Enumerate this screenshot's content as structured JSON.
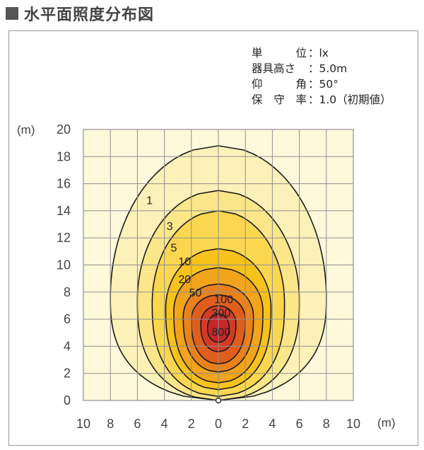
{
  "title": "水平面照度分布図",
  "specs": [
    {
      "label": [
        "単",
        "位"
      ],
      "value": "：lx"
    },
    {
      "label": [
        "器具高さ"
      ],
      "value": "：5.0m"
    },
    {
      "label": [
        "仰",
        "角"
      ],
      "value": "：50°"
    },
    {
      "label": [
        "保",
        "守",
        "率"
      ],
      "value": "：1.0（初期値）"
    }
  ],
  "chart_data": {
    "type": "contour",
    "xlabel": "(m)",
    "ylabel": "(m)",
    "xlim": [
      -10,
      10
    ],
    "ylim": [
      0,
      20
    ],
    "x_tick_labels": [
      "10",
      "8",
      "6",
      "4",
      "2",
      "0",
      "2",
      "4",
      "6",
      "8",
      "10"
    ],
    "y_tick_labels": [
      "0",
      "2",
      "4",
      "6",
      "8",
      "10",
      "12",
      "14",
      "16",
      "18",
      "20"
    ],
    "grid": true,
    "fixture_position": [
      0,
      0
    ],
    "contour_levels": [
      {
        "level": "1",
        "color": "#fcf1b8",
        "half_width": 8.0,
        "y_min": 0.0,
        "y_max": 18.8,
        "y_widest": 7.6,
        "label_at": [
          -5.1,
          14.7
        ]
      },
      {
        "level": "3",
        "color": "#fbe68a",
        "half_width": 6.0,
        "y_min": 0.0,
        "y_max": 15.5,
        "y_widest": 7.4,
        "label_at": [
          -3.6,
          12.8
        ]
      },
      {
        "level": "5",
        "color": "#fbd750",
        "half_width": 4.9,
        "y_min": 0.3,
        "y_max": 14.0,
        "y_widest": 7.2,
        "label_at": [
          -3.3,
          11.2
        ]
      },
      {
        "level": "10",
        "color": "#f7c21c",
        "half_width": 3.9,
        "y_min": 0.8,
        "y_max": 11.2,
        "y_widest": 6.8,
        "label_at": [
          -2.5,
          10.2
        ]
      },
      {
        "level": "20",
        "color": "#f2a41a",
        "half_width": 3.3,
        "y_min": 1.3,
        "y_max": 9.8,
        "y_widest": 6.6,
        "label_at": [
          -2.5,
          8.9
        ]
      },
      {
        "level": "50",
        "color": "#ea8219",
        "half_width": 2.6,
        "y_min": 2.1,
        "y_max": 8.6,
        "y_widest": 6.2,
        "label_at": [
          -1.7,
          7.9
        ]
      },
      {
        "level": "100",
        "color": "#e05e1d",
        "half_width": 2.0,
        "y_min": 2.7,
        "y_max": 7.8,
        "y_widest": 6.0,
        "label_at": [
          0.4,
          7.4
        ]
      },
      {
        "level": "300",
        "color": "#d43b25",
        "half_width": 1.3,
        "y_min": 3.6,
        "y_max": 7.0,
        "y_widest": 5.7,
        "label_at": [
          0.2,
          6.4
        ]
      },
      {
        "level": "800",
        "color": "#c8262a",
        "half_width": 0.8,
        "y_min": 4.3,
        "y_max": 6.4,
        "y_widest": 5.4,
        "label_at": [
          0.2,
          5.0
        ]
      }
    ]
  }
}
